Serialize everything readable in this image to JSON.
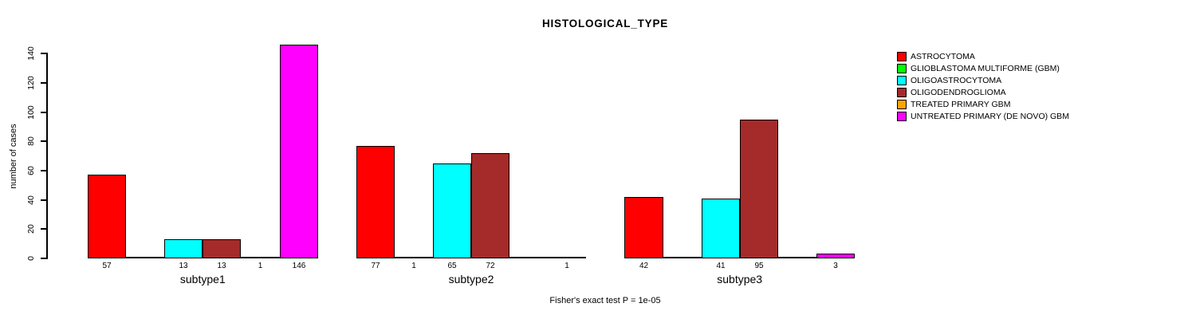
{
  "chart_data": {
    "type": "bar",
    "title": "HISTOLOGICAL_TYPE",
    "ylabel": "number of cases",
    "xlabel": "",
    "footer": "Fisher's exact test P = 1e-05",
    "groups": [
      "subtype1",
      "subtype2",
      "subtype3"
    ],
    "y_ticks": [
      0,
      20,
      40,
      60,
      80,
      100,
      120,
      140
    ],
    "ylim": [
      0,
      140
    ],
    "grid": false,
    "legend_position": "right",
    "bar_value_labels": "shown under each bar when value > 0",
    "series": [
      {
        "name": "ASTROCYTOMA",
        "color": "#ff0000",
        "values": [
          57,
          77,
          42
        ]
      },
      {
        "name": "GLIOBLASTOMA MULTIFORME (GBM)",
        "color": "#00ff00",
        "values": [
          0,
          1,
          0
        ]
      },
      {
        "name": "OLIGOASTROCYTOMA",
        "color": "#00ffff",
        "values": [
          13,
          65,
          41
        ]
      },
      {
        "name": "OLIGODENDROGLIOMA",
        "color": "#a52a2a",
        "values": [
          13,
          72,
          95
        ]
      },
      {
        "name": "TREATED PRIMARY GBM",
        "color": "#ffa500",
        "values": [
          1,
          0,
          0
        ]
      },
      {
        "name": "UNTREATED PRIMARY (DE NOVO) GBM",
        "color": "#ff00ff",
        "values": [
          146,
          1,
          3
        ]
      }
    ]
  }
}
